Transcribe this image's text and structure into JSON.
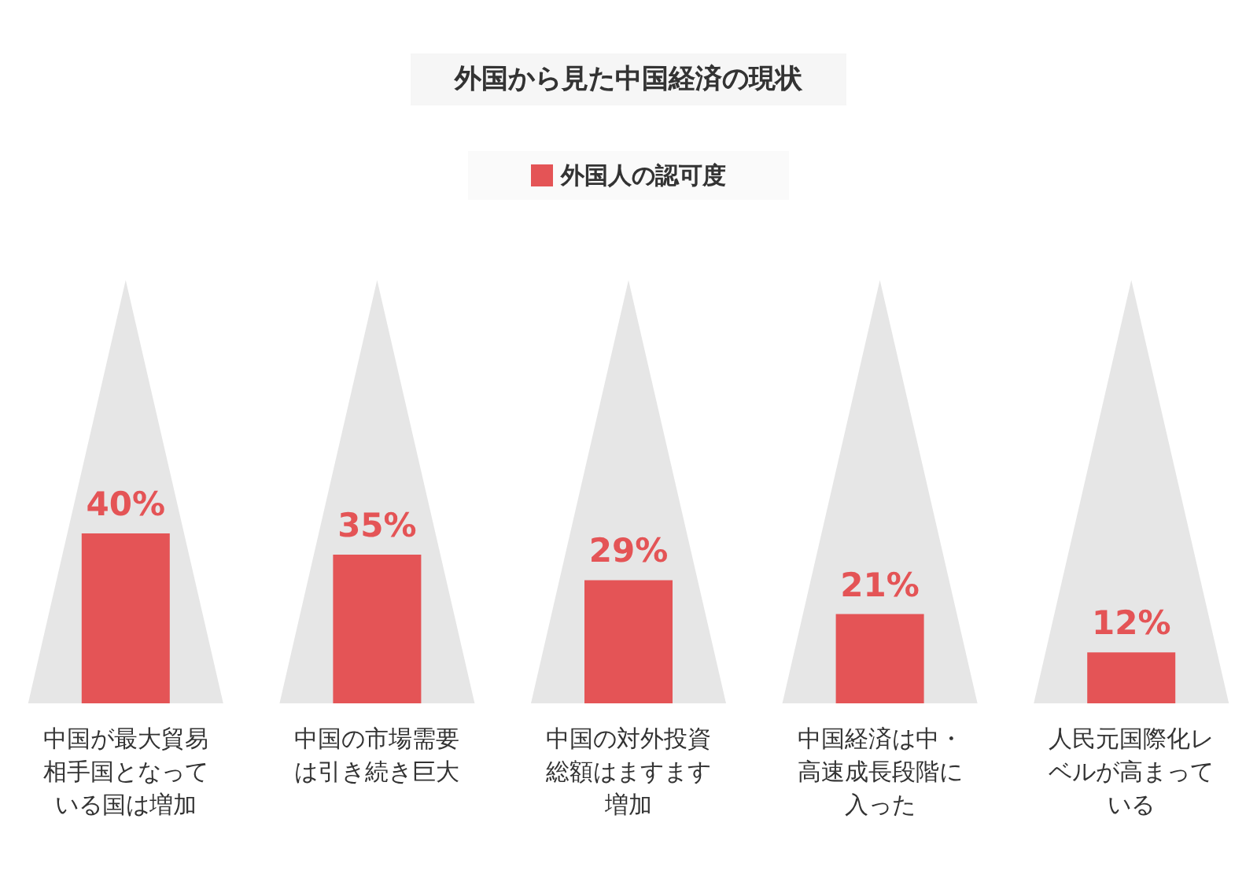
{
  "chart_data": {
    "type": "bar",
    "title": "外国から見た中国経済の現状",
    "categories": [
      "中国が最大貿易相手国となっている国は増加",
      "中国の市場需要は引き続き巨大",
      "中国の対外投資総額はますます増加",
      "中国経済は中・高速成長段階に入った",
      "人民元国際化レベルが高まっている"
    ],
    "series": [
      {
        "name": "外国人の認可度",
        "color": "#e45456",
        "values": [
          40,
          35,
          29,
          21,
          12
        ],
        "value_labels": [
          "40%",
          "35%",
          "29%",
          "21%",
          "12%"
        ]
      }
    ],
    "tick_labels": "x",
    "legend": "top",
    "grid": false
  }
}
